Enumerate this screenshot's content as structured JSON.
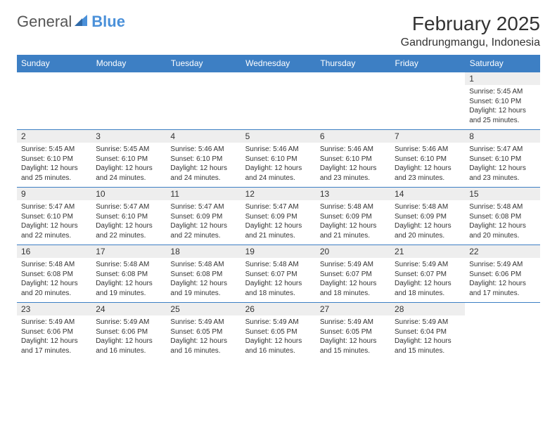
{
  "logo": {
    "part1": "General",
    "part2": "Blue"
  },
  "title": "February 2025",
  "location": "Gandrungmangu, Indonesia",
  "colors": {
    "header_bg": "#3d7fc4",
    "header_text": "#ffffff",
    "daynum_bg": "#eeeeee",
    "line": "#3d7fc4",
    "logo_blue": "#4a90d9"
  },
  "days_of_week": [
    "Sunday",
    "Monday",
    "Tuesday",
    "Wednesday",
    "Thursday",
    "Friday",
    "Saturday"
  ],
  "weeks": [
    [
      null,
      null,
      null,
      null,
      null,
      null,
      {
        "n": "1",
        "sunrise": "5:45 AM",
        "sunset": "6:10 PM",
        "daylight": "12 hours and 25 minutes."
      }
    ],
    [
      {
        "n": "2",
        "sunrise": "5:45 AM",
        "sunset": "6:10 PM",
        "daylight": "12 hours and 25 minutes."
      },
      {
        "n": "3",
        "sunrise": "5:45 AM",
        "sunset": "6:10 PM",
        "daylight": "12 hours and 24 minutes."
      },
      {
        "n": "4",
        "sunrise": "5:46 AM",
        "sunset": "6:10 PM",
        "daylight": "12 hours and 24 minutes."
      },
      {
        "n": "5",
        "sunrise": "5:46 AM",
        "sunset": "6:10 PM",
        "daylight": "12 hours and 24 minutes."
      },
      {
        "n": "6",
        "sunrise": "5:46 AM",
        "sunset": "6:10 PM",
        "daylight": "12 hours and 23 minutes."
      },
      {
        "n": "7",
        "sunrise": "5:46 AM",
        "sunset": "6:10 PM",
        "daylight": "12 hours and 23 minutes."
      },
      {
        "n": "8",
        "sunrise": "5:47 AM",
        "sunset": "6:10 PM",
        "daylight": "12 hours and 23 minutes."
      }
    ],
    [
      {
        "n": "9",
        "sunrise": "5:47 AM",
        "sunset": "6:10 PM",
        "daylight": "12 hours and 22 minutes."
      },
      {
        "n": "10",
        "sunrise": "5:47 AM",
        "sunset": "6:10 PM",
        "daylight": "12 hours and 22 minutes."
      },
      {
        "n": "11",
        "sunrise": "5:47 AM",
        "sunset": "6:09 PM",
        "daylight": "12 hours and 22 minutes."
      },
      {
        "n": "12",
        "sunrise": "5:47 AM",
        "sunset": "6:09 PM",
        "daylight": "12 hours and 21 minutes."
      },
      {
        "n": "13",
        "sunrise": "5:48 AM",
        "sunset": "6:09 PM",
        "daylight": "12 hours and 21 minutes."
      },
      {
        "n": "14",
        "sunrise": "5:48 AM",
        "sunset": "6:09 PM",
        "daylight": "12 hours and 20 minutes."
      },
      {
        "n": "15",
        "sunrise": "5:48 AM",
        "sunset": "6:08 PM",
        "daylight": "12 hours and 20 minutes."
      }
    ],
    [
      {
        "n": "16",
        "sunrise": "5:48 AM",
        "sunset": "6:08 PM",
        "daylight": "12 hours and 20 minutes."
      },
      {
        "n": "17",
        "sunrise": "5:48 AM",
        "sunset": "6:08 PM",
        "daylight": "12 hours and 19 minutes."
      },
      {
        "n": "18",
        "sunrise": "5:48 AM",
        "sunset": "6:08 PM",
        "daylight": "12 hours and 19 minutes."
      },
      {
        "n": "19",
        "sunrise": "5:48 AM",
        "sunset": "6:07 PM",
        "daylight": "12 hours and 18 minutes."
      },
      {
        "n": "20",
        "sunrise": "5:49 AM",
        "sunset": "6:07 PM",
        "daylight": "12 hours and 18 minutes."
      },
      {
        "n": "21",
        "sunrise": "5:49 AM",
        "sunset": "6:07 PM",
        "daylight": "12 hours and 18 minutes."
      },
      {
        "n": "22",
        "sunrise": "5:49 AM",
        "sunset": "6:06 PM",
        "daylight": "12 hours and 17 minutes."
      }
    ],
    [
      {
        "n": "23",
        "sunrise": "5:49 AM",
        "sunset": "6:06 PM",
        "daylight": "12 hours and 17 minutes."
      },
      {
        "n": "24",
        "sunrise": "5:49 AM",
        "sunset": "6:06 PM",
        "daylight": "12 hours and 16 minutes."
      },
      {
        "n": "25",
        "sunrise": "5:49 AM",
        "sunset": "6:05 PM",
        "daylight": "12 hours and 16 minutes."
      },
      {
        "n": "26",
        "sunrise": "5:49 AM",
        "sunset": "6:05 PM",
        "daylight": "12 hours and 16 minutes."
      },
      {
        "n": "27",
        "sunrise": "5:49 AM",
        "sunset": "6:05 PM",
        "daylight": "12 hours and 15 minutes."
      },
      {
        "n": "28",
        "sunrise": "5:49 AM",
        "sunset": "6:04 PM",
        "daylight": "12 hours and 15 minutes."
      },
      null
    ]
  ],
  "labels": {
    "sunrise": "Sunrise:",
    "sunset": "Sunset:",
    "daylight": "Daylight:"
  }
}
